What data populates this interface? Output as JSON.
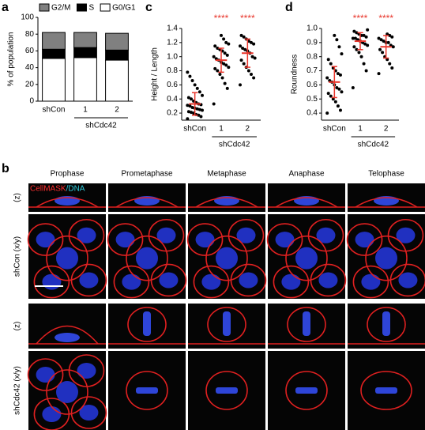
{
  "chart_data": [
    {
      "type": "stacked_bar",
      "panel_label": "a",
      "ylabel": "% of population",
      "categories": [
        "shCon",
        "1",
        "2"
      ],
      "group_label": "shCdc42",
      "series": [
        {
          "name": "G2/M",
          "color": "#808080",
          "values": [
            20,
            18,
            20
          ]
        },
        {
          "name": "S",
          "color": "#000000",
          "values": [
            11,
            12,
            12
          ]
        },
        {
          "name": "G0/G1",
          "color": "#ffffff",
          "values": [
            51,
            52,
            49
          ]
        }
      ],
      "ylim": [
        0,
        100
      ],
      "yticks": [
        0,
        20,
        40,
        60,
        80,
        100
      ]
    },
    {
      "type": "dot_plot",
      "panel_label": "c",
      "ylabel": "Height / Length",
      "group_label": "shCdc42",
      "point_color": "#000000",
      "summary_color": "#e8352b",
      "groups": [
        {
          "name": "shCon",
          "mean": 0.33,
          "sd": 0.16,
          "points": [
            0.12,
            0.15,
            0.17,
            0.18,
            0.2,
            0.21,
            0.22,
            0.24,
            0.25,
            0.26,
            0.27,
            0.28,
            0.3,
            0.31,
            0.32,
            0.33,
            0.35,
            0.37,
            0.4,
            0.42,
            0.45,
            0.5,
            0.55,
            0.6,
            0.66,
            0.72,
            0.78
          ]
        },
        {
          "name": "1",
          "significance": "****",
          "mean": 0.95,
          "sd": 0.17,
          "points": [
            0.33,
            0.55,
            0.62,
            0.7,
            0.75,
            0.8,
            0.83,
            0.85,
            0.88,
            0.9,
            0.92,
            0.95,
            0.97,
            1.0,
            1.02,
            1.05,
            1.08,
            1.1,
            1.12,
            1.15,
            1.18,
            1.2,
            1.25,
            1.3
          ]
        },
        {
          "name": "2",
          "significance": "****",
          "mean": 1.05,
          "sd": 0.2,
          "points": [
            0.6,
            0.7,
            0.75,
            0.8,
            0.85,
            0.9,
            0.95,
            0.98,
            1.0,
            1.05,
            1.08,
            1.1,
            1.12,
            1.15,
            1.18,
            1.2,
            1.22,
            1.25,
            1.28,
            1.3
          ]
        }
      ],
      "ylim": [
        0.1,
        1.4
      ],
      "yticks": [
        0.2,
        0.4,
        0.6,
        0.8,
        {
          "value": 1,
          "label": "1.0"
        },
        1.2,
        1.4
      ]
    },
    {
      "type": "dot_plot",
      "panel_label": "d",
      "ylabel": "Roundness",
      "group_label": "shCdc42",
      "point_color": "#000000",
      "summary_color": "#e8352b",
      "groups": [
        {
          "name": "shCon",
          "mean": 0.62,
          "sd": 0.11,
          "points": [
            0.4,
            0.42,
            0.45,
            0.48,
            0.5,
            0.52,
            0.54,
            0.55,
            0.57,
            0.58,
            0.6,
            0.62,
            0.63,
            0.65,
            0.67,
            0.68,
            0.7,
            0.72,
            0.75,
            0.78,
            0.82,
            0.87,
            0.92,
            0.95
          ]
        },
        {
          "name": "1",
          "significance": "****",
          "mean": 0.91,
          "sd": 0.06,
          "points": [
            0.58,
            0.7,
            0.75,
            0.8,
            0.83,
            0.85,
            0.87,
            0.88,
            0.89,
            0.9,
            0.91,
            0.92,
            0.93,
            0.93,
            0.94,
            0.95,
            0.95,
            0.96,
            0.97,
            0.98,
            0.99
          ]
        },
        {
          "name": "2",
          "significance": "****",
          "mean": 0.87,
          "sd": 0.08,
          "points": [
            0.68,
            0.72,
            0.75,
            0.78,
            0.8,
            0.83,
            0.85,
            0.87,
            0.88,
            0.9,
            0.9,
            0.91,
            0.92,
            0.93,
            0.94,
            0.95,
            0.96
          ]
        }
      ],
      "ylim": [
        0.35,
        1.0
      ],
      "yticks": [
        0.4,
        0.5,
        0.6,
        0.7,
        0.8,
        0.9,
        {
          "value": 1,
          "label": "1.0"
        }
      ]
    }
  ],
  "figure_b": {
    "panel_label": "b",
    "stain_labels": [
      "CellMASK",
      "/DNA"
    ],
    "phases": [
      "Prophase",
      "Prometaphase",
      "Metaphase",
      "Anaphase",
      "Telophase"
    ],
    "rows": [
      "(z)",
      "shCon (x/y)",
      "(z)",
      "shCdc42 (x/y)"
    ]
  }
}
